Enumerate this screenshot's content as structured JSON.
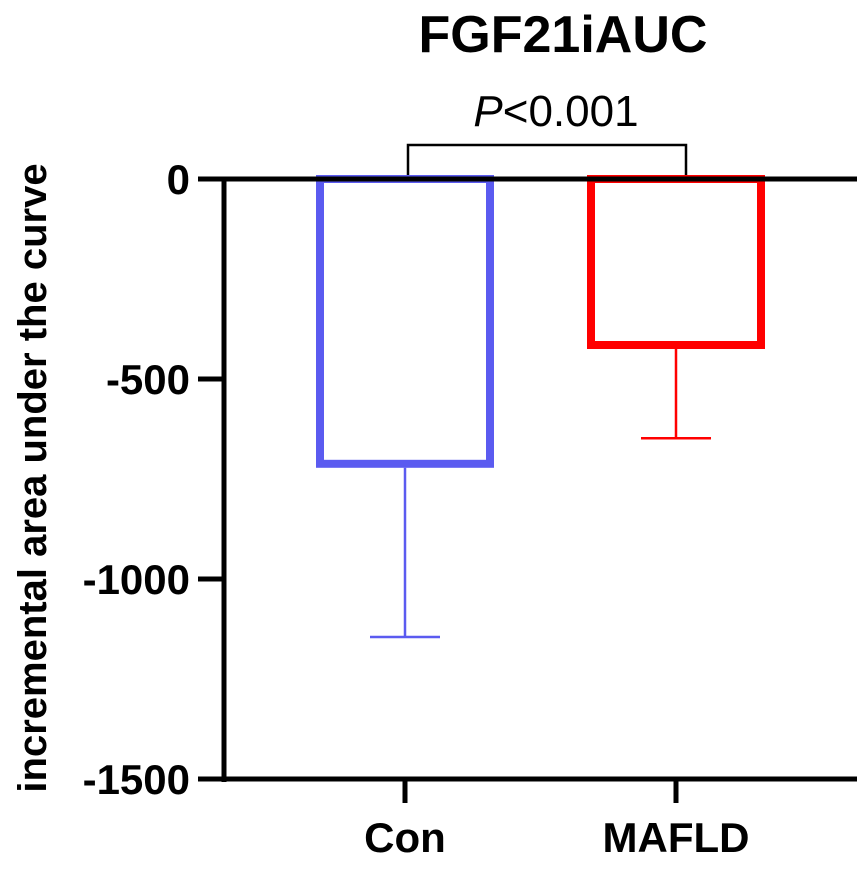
{
  "chart_data": {
    "type": "bar",
    "title": "FGF21iAUC",
    "ylabel": "incremental area under the curve",
    "xlabel": "",
    "categories": [
      "Con",
      "MAFLD"
    ],
    "values": [
      -712,
      -415
    ],
    "error_lower": [
      -1145,
      -648
    ],
    "ylim": [
      -1500,
      0
    ],
    "yticks": [
      0,
      -500,
      -1000,
      -1500
    ],
    "ytick_labels": [
      "0",
      "-500",
      "-1000",
      "-1500"
    ],
    "colors": [
      "#5b5bf0",
      "#ff0000"
    ],
    "bar_fill": "none",
    "grid": false,
    "significance": {
      "from": "Con",
      "to": "MAFLD",
      "italic_part": "P",
      "rest": "<0.001"
    }
  }
}
